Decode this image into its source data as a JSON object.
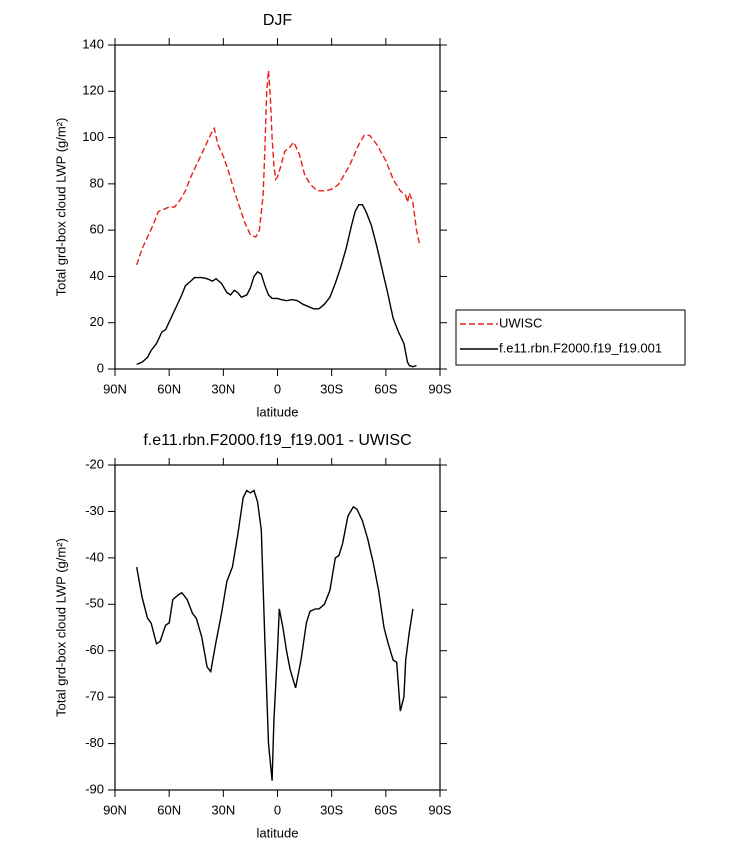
{
  "chart_data": [
    {
      "type": "line",
      "title": "DJF",
      "xlabel": "latitude",
      "ylabel": "Total grd-box cloud LWP (g/m²)",
      "xlim": [
        90,
        -90
      ],
      "xticks": [
        {
          "value": 90,
          "label": "90N"
        },
        {
          "value": 60,
          "label": "60N"
        },
        {
          "value": 30,
          "label": "30N"
        },
        0,
        {
          "value": -30,
          "label": "30S"
        },
        {
          "value": -60,
          "label": "60S"
        },
        {
          "value": -90,
          "label": "90S"
        }
      ],
      "ylim": [
        0,
        140
      ],
      "yticks": [
        0,
        20,
        40,
        60,
        80,
        100,
        120,
        140
      ],
      "legend": "right",
      "series": [
        {
          "name": "UWISC",
          "color": "#e8201c",
          "dash": true,
          "x": [
            78,
            75,
            72,
            69,
            66,
            63,
            60,
            57,
            54,
            51,
            48,
            45,
            42,
            39,
            36,
            35,
            33,
            30,
            27,
            24,
            21,
            18,
            15,
            12,
            10,
            8,
            7,
            6,
            5,
            4,
            3,
            2,
            1,
            0,
            -2,
            -4,
            -7,
            -9,
            -12,
            -15,
            -18,
            -22,
            -27,
            -31,
            -34,
            -37,
            -40,
            -45,
            -48,
            -51,
            -55,
            -60,
            -64,
            -68,
            -71,
            -72,
            -73,
            -75,
            -77,
            -79
          ],
          "values": [
            45,
            52,
            57,
            62,
            68,
            69,
            70,
            70,
            73,
            77,
            83,
            88,
            93,
            98,
            103,
            104,
            97,
            92,
            85,
            77,
            70,
            63,
            58,
            57,
            60,
            75,
            95,
            120,
            129,
            118,
            100,
            88,
            82,
            83,
            88,
            94,
            96,
            98,
            93,
            84,
            80,
            77,
            77,
            78,
            80,
            84,
            88,
            97,
            101,
            101,
            97,
            90,
            82,
            77,
            75,
            72,
            76,
            72,
            60,
            53
          ]
        },
        {
          "name": "f.e11.rbn.F2000.f19_f19.001",
          "color": "#000000",
          "dash": false,
          "x": [
            78,
            75,
            72,
            70,
            67,
            64,
            62,
            59,
            56,
            53,
            51,
            48,
            46,
            42,
            39,
            36,
            34,
            31,
            28,
            26,
            24,
            22,
            20,
            17,
            15,
            13,
            11,
            9,
            7,
            5,
            3,
            0,
            -2,
            -5,
            -8,
            -11,
            -14,
            -17,
            -20,
            -23,
            -26,
            -29,
            -32,
            -35,
            -38,
            -41,
            -43,
            -45,
            -47,
            -49,
            -52,
            -55,
            -58,
            -61,
            -64,
            -67,
            -70,
            -72,
            -73,
            -75,
            -77
          ],
          "values": [
            2,
            3,
            5,
            8,
            11,
            16,
            17,
            22,
            27,
            32,
            36,
            38,
            39.5,
            39.5,
            39,
            38,
            39,
            37,
            33,
            32,
            34,
            33,
            31,
            32,
            35,
            40,
            42,
            41,
            36,
            32,
            30.5,
            30.5,
            30,
            29.5,
            30,
            29.5,
            28,
            27,
            26,
            26,
            28,
            31,
            37,
            44,
            52,
            62,
            68,
            71,
            71,
            68,
            62,
            53,
            43,
            33,
            22,
            16,
            11,
            3,
            1.5,
            1,
            1.5
          ]
        }
      ]
    },
    {
      "type": "line",
      "title": "f.e11.rbn.F2000.f19_f19.001 - UWISC",
      "xlabel": "latitude",
      "ylabel": "Total grd-box cloud LWP (g/m²)",
      "xlim": [
        90,
        -90
      ],
      "xticks": [
        {
          "value": 90,
          "label": "90N"
        },
        {
          "value": 60,
          "label": "60N"
        },
        {
          "value": 30,
          "label": "30N"
        },
        0,
        {
          "value": -30,
          "label": "30S"
        },
        {
          "value": -60,
          "label": "60S"
        },
        {
          "value": -90,
          "label": "90S"
        }
      ],
      "ylim": [
        -90,
        -20
      ],
      "yticks": [
        -90,
        -80,
        -70,
        -60,
        -50,
        -40,
        -30,
        -20
      ],
      "color": "#000000",
      "x": [
        78,
        75,
        72,
        70,
        67,
        65,
        62,
        60,
        58,
        55,
        53,
        50,
        47,
        45,
        42,
        39,
        37,
        34,
        31,
        28,
        25,
        22,
        19,
        17,
        15,
        13,
        11,
        9,
        7,
        5,
        3,
        2,
        0,
        -1,
        -3,
        -5,
        -7,
        -10,
        -13,
        -16,
        -18,
        -21,
        -23,
        -26,
        -29,
        -32,
        -34,
        -36,
        -39,
        -42,
        -44,
        -47,
        -50,
        -53,
        -56,
        -59,
        -61,
        -64,
        -66,
        -68,
        -70,
        -71,
        -73,
        -75
      ],
      "values": [
        -42,
        -48.5,
        -53,
        -54,
        -58.5,
        -58,
        -54.5,
        -54,
        -49,
        -48,
        -47.5,
        -49,
        -52,
        -53,
        -57,
        -63.5,
        -64.5,
        -58,
        -52,
        -45,
        -42,
        -35,
        -27,
        -25.5,
        -26,
        -25.5,
        -28,
        -34,
        -58,
        -80,
        -88,
        -75,
        -60,
        -51,
        -55,
        -60,
        -64,
        -68,
        -62,
        -54,
        -51.5,
        -51,
        -51,
        -50,
        -47,
        -40,
        -39.5,
        -37,
        -31,
        -29,
        -29.5,
        -32,
        -36,
        -41,
        -47,
        -55,
        -58,
        -62,
        -62.5,
        -73,
        -70,
        -62,
        -56,
        -51
      ]
    }
  ]
}
